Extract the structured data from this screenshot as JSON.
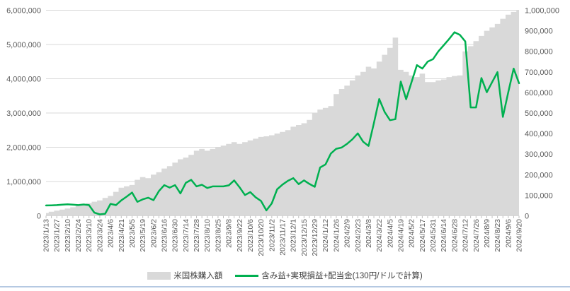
{
  "chart_data": {
    "type": "area-line-combo",
    "title": "",
    "x_labels": [
      "2023/1/13",
      "2023/1/27",
      "2023/2/10",
      "2023/2/24",
      "2023/3/10",
      "2023/3/24",
      "2023/4/6",
      "2023/4/21",
      "2023/5/5",
      "2023/5/19",
      "2023/6/2",
      "2023/6/16",
      "2023/6/30",
      "2023/7/14",
      "2023/7/28",
      "2023/8/10",
      "2023/8/25",
      "2023/9/8",
      "2023/9/22",
      "2023/10/6",
      "2023/10/20",
      "2023/11/2",
      "2023/11/17",
      "2023/12/1",
      "2023/12/15",
      "2023/12/29",
      "2024/1/12",
      "2024/1/26",
      "2024/2/9",
      "2024/2/23",
      "2024/3/8",
      "2024/3/22",
      "2024/4/5",
      "2024/4/19",
      "2024/5/2",
      "2024/5/17",
      "2024/5/31",
      "2024/6/14",
      "2024/6/28",
      "2024/7/12",
      "2024/7/26",
      "2024/8/9",
      "2024/8/23",
      "2024/9/6",
      "2024/9/20"
    ],
    "x_label_every_n_points": 2,
    "left_axis": {
      "min": 0,
      "max": 6000000,
      "tick_labels": [
        "0",
        "1,000,000",
        "2,000,000",
        "3,000,000",
        "4,000,000",
        "5,000,000",
        "6,000,000"
      ]
    },
    "right_axis": {
      "min": 0,
      "max": 1000000,
      "tick_labels": [
        "0",
        "100,000",
        "200,000",
        "300,000",
        "400,000",
        "500,000",
        "600,000",
        "700,000",
        "800,000",
        "900,000",
        "1,000,000"
      ]
    },
    "grid": "horizontal",
    "legend_position": "bottom",
    "series": [
      {
        "name": "米国株購入額",
        "type": "area",
        "axis": "left",
        "color": "#d9d9d9",
        "values": [
          80000,
          120000,
          150000,
          180000,
          210000,
          250000,
          290000,
          330000,
          370000,
          410000,
          450000,
          520000,
          580000,
          700000,
          820000,
          860000,
          900000,
          1050000,
          1130000,
          1100000,
          1200000,
          1270000,
          1380000,
          1450000,
          1550000,
          1650000,
          1700000,
          1780000,
          1900000,
          1950000,
          1900000,
          1950000,
          2000000,
          2050000,
          2100000,
          2150000,
          2100000,
          2150000,
          2200000,
          2250000,
          2300000,
          2320000,
          2350000,
          2400000,
          2450000,
          2500000,
          2600000,
          2650000,
          2700000,
          2800000,
          3000000,
          3100000,
          3150000,
          3200000,
          3550000,
          3700000,
          3800000,
          3950000,
          4100000,
          4200000,
          4350000,
          4300000,
          4500000,
          4700000,
          4900000,
          5200000,
          4260000,
          4200000,
          4100000,
          4050000,
          4150000,
          3900000,
          3900000,
          3950000,
          3980000,
          4050000,
          4080000,
          4100000,
          4800000,
          4950000,
          5100000,
          5250000,
          5400000,
          5500000,
          5600000,
          5750000,
          5870000,
          5950000,
          6000000
        ]
      },
      {
        "name": "含み益+実現損益+配当金(130円/ドルで計算)",
        "type": "line",
        "axis": "right",
        "color": "#00B050",
        "values": [
          50000,
          51000,
          52000,
          54000,
          56000,
          54000,
          52000,
          55000,
          52000,
          15000,
          7000,
          10000,
          58000,
          52000,
          75000,
          93000,
          113000,
          68000,
          80000,
          88000,
          76000,
          120000,
          149000,
          137000,
          149000,
          109000,
          160000,
          175000,
          143000,
          151000,
          135000,
          143000,
          143000,
          143000,
          148000,
          172000,
          139000,
          101000,
          115000,
          90000,
          72000,
          26000,
          60000,
          129000,
          152000,
          170000,
          183000,
          154000,
          172000,
          155000,
          141000,
          235000,
          250000,
          303000,
          326000,
          332000,
          350000,
          372000,
          401000,
          360000,
          340000,
          450000,
          568000,
          505000,
          465000,
          470000,
          653000,
          567000,
          650000,
          733000,
          716000,
          750000,
          762000,
          800000,
          830000,
          860000,
          893000,
          880000,
          848000,
          527000,
          527000,
          670000,
          601000,
          650000,
          699000,
          481000,
          601000,
          716000,
          645000
        ]
      }
    ]
  },
  "colors": {
    "area": "#d9d9d9",
    "line": "#00B050",
    "grid": "#d9d9d9",
    "tick": "#bfbfbf",
    "axis_text": "#595959",
    "bottom_border": "#b5c9e2",
    "background": "#ffffff"
  }
}
